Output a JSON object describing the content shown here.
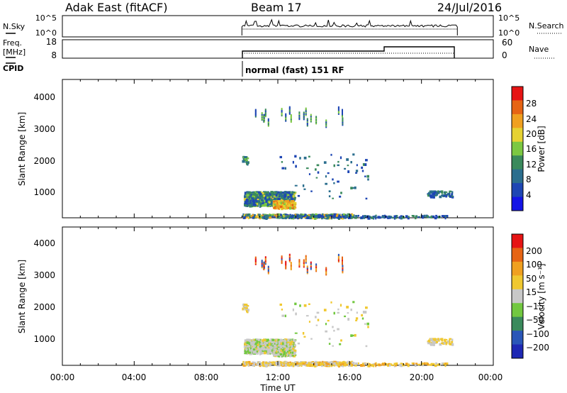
{
  "header": {
    "station": "Adak East (fitACF)",
    "beam": "Beam 17",
    "date": "24/Jul/2016"
  },
  "panels": {
    "noise": {
      "left_label": "N.Sky",
      "right_label": "N.Search",
      "left_ticks": [
        "10^5",
        "10^0"
      ],
      "right_ticks": [
        "10^5",
        "10^0"
      ]
    },
    "freq": {
      "left_label_top": "Freq.",
      "left_label_bottom": "[MHz]",
      "right_label": "Nave",
      "left_ticks": [
        "18",
        "8"
      ],
      "right_ticks": [
        "60",
        "0"
      ]
    },
    "cpid": {
      "label": "CPID",
      "mode": "normal (fast) 151 RF"
    }
  },
  "chart_data": [
    {
      "type": "heatmap",
      "name": "power",
      "ylabel": "Slant Range [km]",
      "yticks": [
        "4000",
        "3000",
        "2000",
        "1000"
      ],
      "colorbar_label": "Power [dB]",
      "colorbar_ticks": [
        "28",
        "24",
        "20",
        "16",
        "12",
        "8",
        "4"
      ],
      "colors": [
        "#1414e6",
        "#1e46b4",
        "#2b6e8e",
        "#3a8a5c",
        "#7cc842",
        "#e6d232",
        "#f0a020",
        "#e66414",
        "#e61414"
      ],
      "ylim": [
        180,
        4500
      ]
    },
    {
      "type": "heatmap",
      "name": "velocity",
      "ylabel": "Slant Range [km]",
      "yticks": [
        "4000",
        "3000",
        "2000",
        "1000"
      ],
      "colorbar_label": "Velocity [m s⁻¹]",
      "colorbar_ticks": [
        "200",
        "100",
        "50",
        "15",
        "−15",
        "−50",
        "−100",
        "−200"
      ],
      "colors": [
        "#1e28b4",
        "#2a56b8",
        "#3a8a5c",
        "#72c840",
        "#c8c8c8",
        "#f0c830",
        "#f0a020",
        "#e66414",
        "#e61414"
      ],
      "ylim": [
        180,
        4500
      ]
    }
  ],
  "xaxis": {
    "label": "Time UT",
    "ticks": [
      "00:00",
      "04:00",
      "08:00",
      "12:00",
      "16:00",
      "20:00",
      "00:00"
    ],
    "range_hours": [
      0,
      24
    ],
    "data_window_hours": [
      10,
      22
    ]
  }
}
